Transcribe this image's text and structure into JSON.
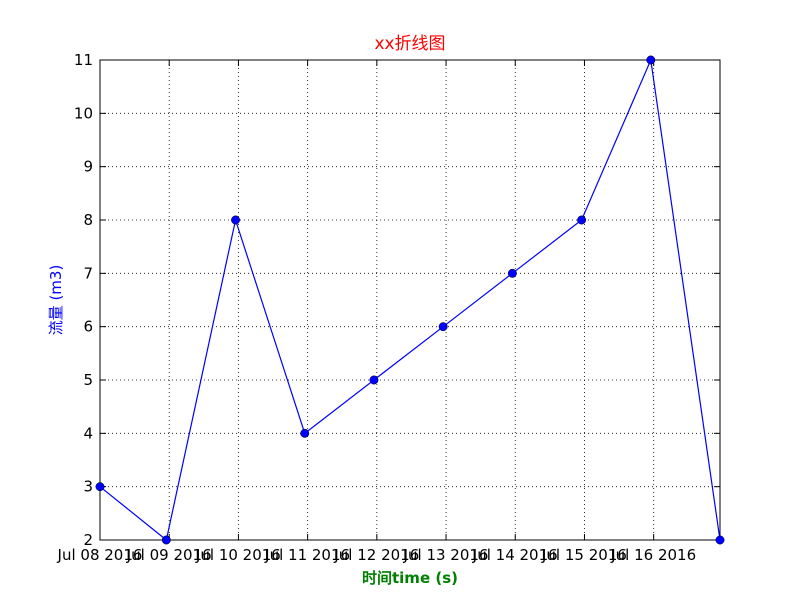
{
  "chart_data": {
    "type": "line",
    "title": "xx折线图",
    "xlabel": "时间time (s)",
    "ylabel": "流量 (m3)",
    "x": [
      "2016-07-08 00:00",
      "2016-07-08 23:00",
      "2016-07-09 23:00",
      "2016-07-10 23:00",
      "2016-07-11 23:00",
      "2016-07-12 23:00",
      "2016-07-13 23:00",
      "2016-07-14 23:00",
      "2016-07-15 23:00",
      "2016-07-16 23:00"
    ],
    "series": [
      {
        "values": [
          3,
          2,
          8,
          4,
          5,
          6,
          7,
          8,
          11,
          2
        ]
      }
    ],
    "x_tick_labels": [
      "Jul 08 2016",
      "Jul 09 2016",
      "Jul 10 2016",
      "Jul 11 2016",
      "Jul 12 2016",
      "Jul 13 2016",
      "Jul 14 2016",
      "Jul 15 2016",
      "Jul 16 2016"
    ],
    "y_ticks": [
      2,
      3,
      4,
      5,
      6,
      7,
      8,
      9,
      10,
      11
    ],
    "ylim": [
      2,
      11
    ],
    "xlim": [
      "2016-07-08 00:00",
      "2016-07-16 23:00"
    ],
    "grid": true,
    "colors": {
      "line": "#0000ff",
      "marker": "#0000ff",
      "title": "#ff0000",
      "xlabel": "#008000",
      "ylabel": "#0000ff",
      "grid": "#000000"
    }
  }
}
